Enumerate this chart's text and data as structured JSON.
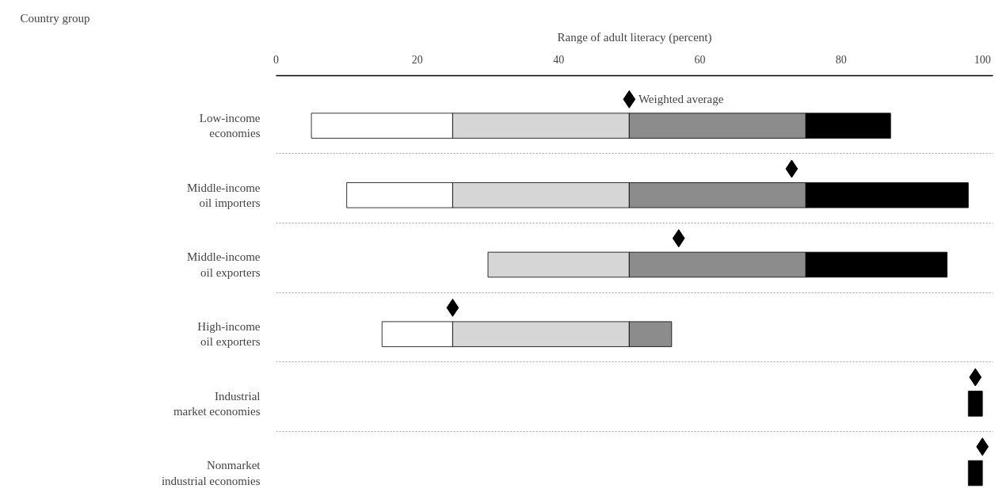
{
  "chart_data": {
    "type": "bar",
    "orientation": "horizontal",
    "xlabel": "Range of adult literacy (percent)",
    "annotations": [
      "Country group"
    ],
    "categories": [
      "Low-income\neconomies",
      "Middle-income\noil importers",
      "Middle-income\noil exporters",
      "High-income\noil exporters",
      "Industrial\nmarket economies",
      "Nonmarket\nindustrial economies"
    ],
    "series": [
      {
        "color": "#ffffff",
        "base": [
          5,
          10,
          null,
          15,
          null,
          null
        ],
        "values": [
          20,
          15,
          null,
          10,
          null,
          null
        ]
      },
      {
        "color": "#d6d6d6",
        "base": [
          25,
          25,
          30,
          25,
          null,
          null
        ],
        "values": [
          25,
          25,
          20,
          25,
          null,
          null
        ]
      },
      {
        "color": "#8c8c8c",
        "base": [
          50,
          50,
          50,
          50,
          null,
          null
        ],
        "values": [
          25,
          25,
          25,
          6,
          null,
          null
        ]
      },
      {
        "color": "#000000",
        "base": [
          75,
          75,
          75,
          null,
          98,
          98
        ],
        "values": [
          12,
          23,
          20,
          null,
          2,
          2
        ]
      },
      {
        "type": "scatter",
        "name": "Weighted average",
        "color": "#000000",
        "marker": "diamond",
        "values": [
          50,
          73,
          57,
          25,
          99,
          100
        ]
      }
    ],
    "xlim": [
      0,
      101.5
    ],
    "xticks": [
      0,
      20,
      40,
      60,
      80,
      100
    ],
    "grid": "y"
  }
}
